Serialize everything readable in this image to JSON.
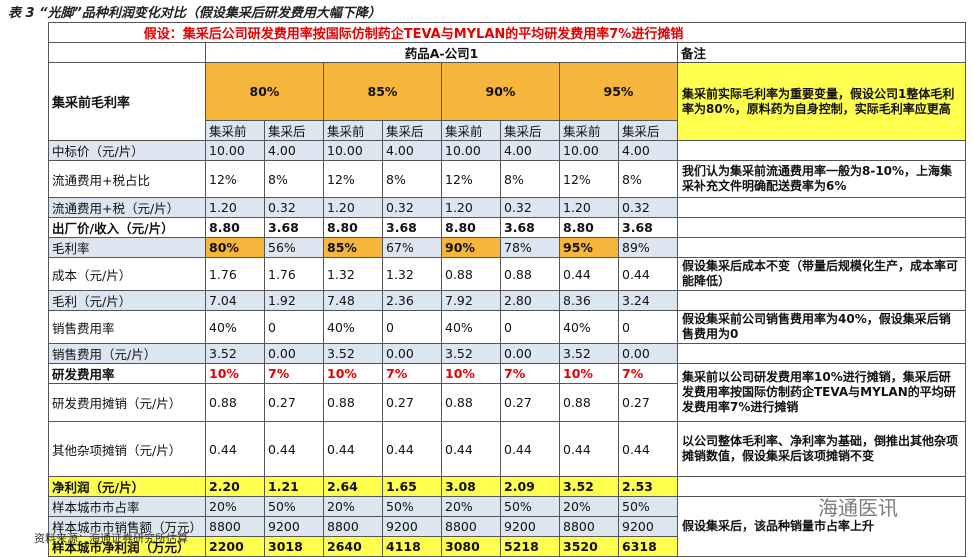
{
  "title": "表 3 “光脚”品种利润变化对比（假设集采后研发费用大幅下降）",
  "assumption": "假设：集采后公司研发费用率按国际仿制药企TEVA与MYLAN的平均研发费用率7%进行摊销",
  "table": {
    "group": "药品A-公司1",
    "note_header": "备注",
    "rate_label": "集采前毛利率",
    "rates": [
      "80%",
      "85%",
      "90%",
      "95%"
    ],
    "rate_note": "集采前实际毛利率为重要变量，假设公司1整体毛利率为80%，原料药为自身控制，实际毛利率应更高",
    "phases": [
      "集采前",
      "集采后"
    ],
    "rows": [
      {
        "label": "中标价（元/片）",
        "values": [
          "10.00",
          "4.00",
          "10.00",
          "4.00",
          "10.00",
          "4.00",
          "10.00",
          "4.00"
        ]
      },
      {
        "label": "流通费用+税占比",
        "values": [
          "12%",
          "8%",
          "12%",
          "8%",
          "12%",
          "8%",
          "12%",
          "8%"
        ]
      },
      {
        "label": "流通费用+税（元/片）",
        "values": [
          "1.20",
          "0.32",
          "1.20",
          "0.32",
          "1.20",
          "0.32",
          "1.20",
          "0.32"
        ]
      },
      {
        "label": "出厂价/收入（元/片）",
        "values": [
          "8.80",
          "3.68",
          "8.80",
          "3.68",
          "8.80",
          "3.68",
          "8.80",
          "3.68"
        ]
      },
      {
        "label": "毛利率",
        "values": [
          "80%",
          "56%",
          "85%",
          "67%",
          "90%",
          "78%",
          "95%",
          "89%"
        ]
      },
      {
        "label": "成本（元/片）",
        "values": [
          "1.76",
          "1.76",
          "1.32",
          "1.32",
          "0.88",
          "0.88",
          "0.44",
          "0.44"
        ]
      },
      {
        "label": "毛利（元/片）",
        "values": [
          "7.04",
          "1.92",
          "7.48",
          "2.36",
          "7.92",
          "2.80",
          "8.36",
          "3.24"
        ]
      },
      {
        "label": "销售费用率",
        "values": [
          "40%",
          "0",
          "40%",
          "0",
          "40%",
          "0",
          "40%",
          "0"
        ]
      },
      {
        "label": "销售费用（元/片）",
        "values": [
          "3.52",
          "0.00",
          "3.52",
          "0.00",
          "3.52",
          "0.00",
          "3.52",
          "0.00"
        ]
      },
      {
        "label": "研发费用率",
        "values": [
          "10%",
          "7%",
          "10%",
          "7%",
          "10%",
          "7%",
          "10%",
          "7%"
        ]
      },
      {
        "label": "研发费用摊销（元/片）",
        "values": [
          "0.88",
          "0.27",
          "0.88",
          "0.27",
          "0.88",
          "0.27",
          "0.88",
          "0.27"
        ]
      },
      {
        "label": "其他杂项摊销（元/片）",
        "values": [
          "0.44",
          "0.44",
          "0.44",
          "0.44",
          "0.44",
          "0.44",
          "0.44",
          "0.44"
        ]
      },
      {
        "label": "净利润（元/片）",
        "values": [
          "2.20",
          "1.21",
          "2.64",
          "1.65",
          "3.08",
          "2.09",
          "3.52",
          "2.53"
        ]
      },
      {
        "label": "样本城市市占率",
        "values": [
          "20%",
          "50%",
          "20%",
          "50%",
          "20%",
          "50%",
          "20%",
          "50%"
        ]
      },
      {
        "label": "样本城市市销售额（万元）",
        "values": [
          "8800",
          "9200",
          "8800",
          "9200",
          "8800",
          "9200",
          "8800",
          "9200"
        ]
      },
      {
        "label": "样本城市净利润（万元）",
        "values": [
          "2200",
          "3018",
          "2640",
          "4118",
          "3080",
          "5218",
          "3520",
          "6318"
        ]
      }
    ],
    "notes": [
      "我们认为集采前流通费用率一般为8-10%，上海集采补充文件明确配送费率为6%",
      "假设集采后成本不变（带量后规模化生产，成本率可能降低）",
      "假设集采前公司销售费用率为40%，假设集采后销售费用为0",
      "集采前以公司研发费用率10%进行摊销，集采后研发费用率按国际仿制药企TEVA与MYLAN的平均研发费用率7%进行摊销",
      "以公司整体毛利率、净利率为基础，倒推出其他杂项摊销数值，假设集采后该项摊销不变",
      "假设集采后，该品种销量市占率上升"
    ]
  },
  "source": "资料来源：海通证券研究所估算",
  "watermark": "海通医讯"
}
